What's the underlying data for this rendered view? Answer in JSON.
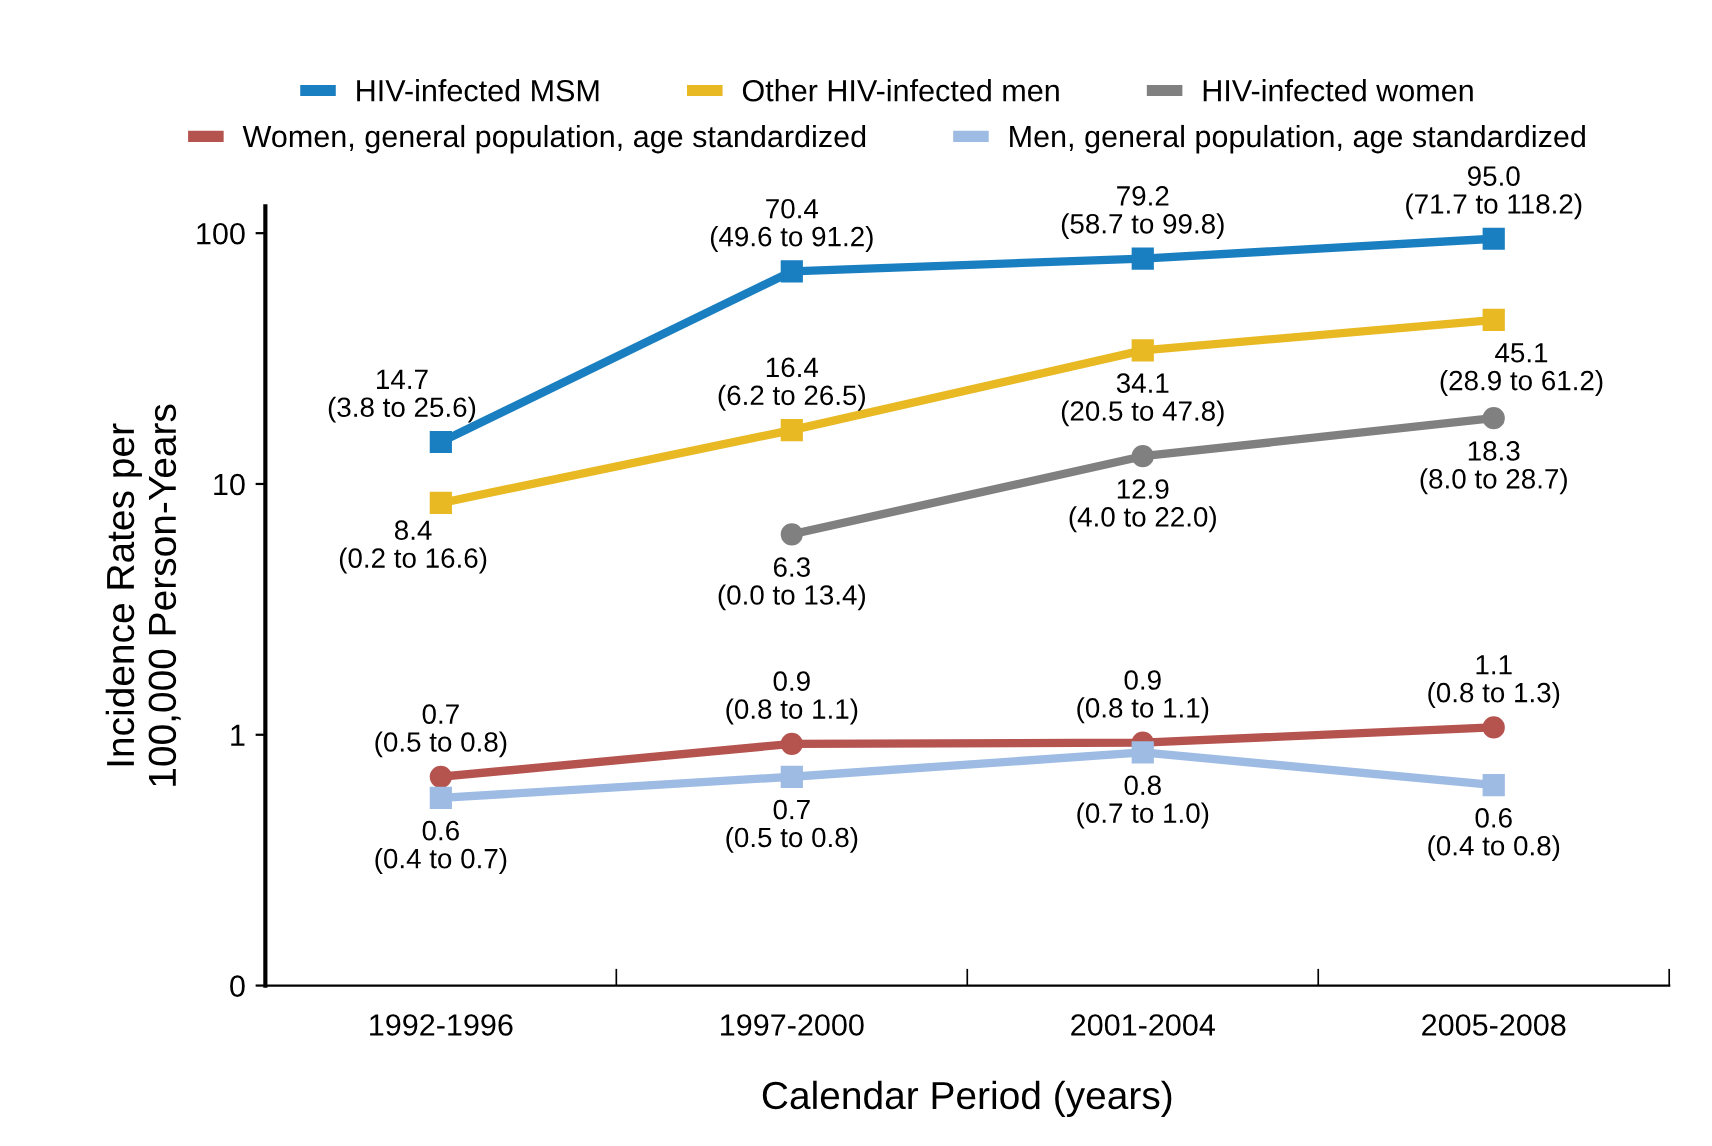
{
  "chart_data": {
    "type": "line",
    "xlabel": "Calendar Period (years)",
    "ylabel": "Incidence Rates per\n100,000 Person-Years",
    "categories": [
      "1992-1996",
      "1997-2000",
      "2001-2004",
      "2005-2008"
    ],
    "log": "y",
    "ylim": [
      0.1,
      128
    ],
    "yticks": [
      {
        "value": 0.1,
        "label": "0"
      },
      1,
      10,
      100
    ],
    "grid": false,
    "legend": "top",
    "line_style": "solid",
    "series": [
      {
        "name": "HIV-infected MSM",
        "color": "#1a7fc1",
        "marker": "square",
        "values": [
          14.7,
          70.4,
          79.2,
          95.0
        ],
        "value_labels": [
          "14.7\n(3.8 to 25.6)",
          "70.4\n(49.6 to 91.2)",
          "79.2\n(58.7 to 99.8)",
          "95.0\n(71.7 to 118.2)"
        ]
      },
      {
        "name": "Other HIV-infected men",
        "color": "#e8b923",
        "marker": "square",
        "values": [
          8.4,
          16.4,
          34.1,
          45.1
        ],
        "value_labels": [
          "8.4\n(0.2 to 16.6)",
          "16.4\n(6.2 to 26.5)",
          "34.1\n(20.5 to 47.8)",
          "45.1\n(28.9 to 61.2)"
        ]
      },
      {
        "name": "HIV-infected women",
        "color": "#808080",
        "marker": "circle",
        "values": [
          null,
          6.3,
          12.9,
          18.3
        ],
        "value_labels": [
          null,
          "6.3\n(0.0 to 13.4)",
          "12.9\n(4.0 to 22.0)",
          "18.3\n(8.0 to 28.7)"
        ]
      },
      {
        "name": "Women, general population, age standardized",
        "color": "#b5534f",
        "marker": "circle",
        "values": [
          0.68,
          0.92,
          0.93,
          1.07
        ],
        "value_labels": [
          "0.7\n(0.5 to 0.8)",
          "0.9\n(0.8 to 1.1)",
          "0.9\n(0.8 to 1.1)",
          "1.1\n(0.8 to 1.3)"
        ]
      },
      {
        "name": "Men, general population, age standardized",
        "color": "#9dbbe3",
        "marker": "square",
        "values": [
          0.56,
          0.68,
          0.85,
          0.63
        ],
        "value_labels": [
          "0.6\n(0.4 to 0.7)",
          "0.7\n(0.5 to 0.8)",
          "0.8\n(0.7 to 1.0)",
          "0.6\n(0.4 to 0.8)"
        ]
      }
    ]
  }
}
